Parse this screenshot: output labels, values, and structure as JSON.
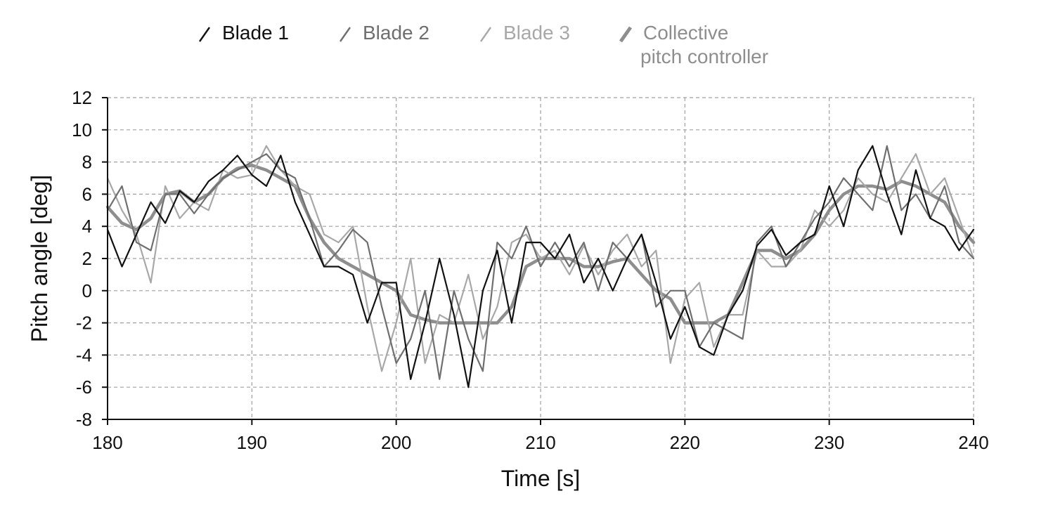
{
  "chart_data": {
    "type": "line",
    "xlabel": "Time [s]",
    "ylabel": "Pitch angle [deg]",
    "xlim": [
      180,
      240
    ],
    "ylim": [
      -8,
      12
    ],
    "x_ticks": [
      180,
      190,
      200,
      210,
      220,
      230,
      240
    ],
    "y_ticks": [
      -8,
      -6,
      -4,
      -2,
      0,
      2,
      4,
      6,
      8,
      10,
      12
    ],
    "x_tick_labels": [
      "180",
      "190",
      "200",
      "210",
      "220",
      "230",
      "240"
    ],
    "y_tick_labels": [
      "-8",
      "-6",
      "-4",
      "-2",
      "0",
      "2",
      "4",
      "6",
      "8",
      "10",
      "12"
    ],
    "grid": true,
    "legend_position": "top",
    "x": [
      180,
      181,
      182,
      183,
      184,
      185,
      186,
      187,
      188,
      189,
      190,
      191,
      192,
      193,
      194,
      195,
      196,
      197,
      198,
      199,
      200,
      201,
      202,
      203,
      204,
      205,
      206,
      207,
      208,
      209,
      210,
      211,
      212,
      213,
      214,
      215,
      216,
      217,
      218,
      219,
      220,
      221,
      222,
      223,
      224,
      225,
      226,
      227,
      228,
      229,
      230,
      231,
      232,
      233,
      234,
      235,
      236,
      237,
      238,
      239,
      240
    ],
    "series": [
      {
        "name": "Blade 1",
        "color": "#111111",
        "width": 2.2,
        "values": [
          3.8,
          1.5,
          3.5,
          5.5,
          4.2,
          6.2,
          5.5,
          6.8,
          7.5,
          8.4,
          7.2,
          6.5,
          8.4,
          5.5,
          3.5,
          1.5,
          1.5,
          1.0,
          -2.0,
          0.5,
          0.5,
          -5.5,
          -2.0,
          2.0,
          -1.5,
          -6.0,
          0.0,
          2.5,
          -2.0,
          3.0,
          3.0,
          2.0,
          3.5,
          0.5,
          2.0,
          0.0,
          2.0,
          3.5,
          0.5,
          -3.0,
          -1.0,
          -3.5,
          -4.0,
          -1.5,
          0.0,
          2.8,
          3.8,
          2.2,
          3.0,
          3.5,
          6.5,
          4.0,
          7.5,
          9.0,
          6.0,
          3.5,
          7.5,
          4.5,
          4.0,
          2.5,
          3.8
        ]
      },
      {
        "name": "Blade 2",
        "color": "#6f6f6f",
        "width": 2.2,
        "values": [
          5.0,
          6.5,
          3.0,
          2.5,
          6.0,
          6.0,
          4.8,
          6.0,
          7.0,
          7.5,
          8.0,
          8.5,
          7.5,
          7.0,
          4.5,
          1.5,
          2.5,
          3.8,
          3.0,
          -1.0,
          -4.5,
          -3.0,
          0.0,
          -5.5,
          0.0,
          -3.0,
          -5.0,
          3.0,
          2.0,
          4.0,
          1.5,
          3.0,
          1.5,
          3.0,
          0.0,
          3.0,
          2.0,
          3.5,
          -1.0,
          0.0,
          0.0,
          -3.5,
          -2.0,
          -2.5,
          -3.0,
          3.0,
          4.0,
          1.5,
          3.0,
          4.5,
          5.5,
          7.0,
          6.0,
          5.0,
          9.0,
          5.0,
          6.0,
          4.5,
          6.5,
          3.0,
          2.0
        ]
      },
      {
        "name": "Blade 3",
        "color": "#a8a8a8",
        "width": 2.2,
        "values": [
          7.0,
          5.0,
          3.5,
          0.5,
          6.5,
          4.5,
          5.5,
          5.0,
          7.5,
          7.0,
          7.2,
          9.0,
          7.5,
          6.5,
          6.0,
          3.5,
          3.0,
          4.0,
          -1.0,
          -5.0,
          -2.0,
          2.0,
          -4.5,
          -1.5,
          -2.0,
          1.0,
          -3.0,
          -1.0,
          3.0,
          3.5,
          2.0,
          2.5,
          1.0,
          2.8,
          1.0,
          2.5,
          3.5,
          1.5,
          2.5,
          -4.5,
          -0.5,
          0.5,
          -3.5,
          -1.5,
          -1.5,
          2.5,
          1.5,
          1.5,
          2.5,
          5.0,
          4.0,
          5.0,
          7.0,
          6.0,
          5.5,
          7.0,
          8.5,
          6.0,
          7.0,
          4.5,
          2.0
        ]
      },
      {
        "name": "Collective pitch controller",
        "color": "#8e8e8e",
        "width": 4.5,
        "values": [
          5.2,
          4.2,
          3.8,
          4.5,
          6.0,
          6.2,
          5.5,
          6.0,
          7.0,
          7.6,
          7.8,
          7.5,
          7.0,
          6.5,
          4.5,
          3.0,
          2.0,
          1.5,
          1.0,
          0.5,
          0.0,
          -1.5,
          -1.8,
          -2.0,
          -2.0,
          -2.0,
          -2.0,
          -2.0,
          -1.0,
          1.5,
          2.0,
          2.0,
          2.0,
          1.5,
          1.5,
          1.8,
          2.0,
          1.0,
          0.0,
          -0.5,
          -2.0,
          -2.0,
          -2.0,
          -1.5,
          0.5,
          2.5,
          2.5,
          2.0,
          2.5,
          3.5,
          5.0,
          6.0,
          6.5,
          6.5,
          6.3,
          6.8,
          6.5,
          6.0,
          5.5,
          4.0,
          3.0
        ]
      }
    ]
  },
  "legend": {
    "blade1": "Blade 1",
    "blade2": "Blade 2",
    "blade3": "Blade 3",
    "collective_line1": "Collective",
    "collective_line2": "pitch controller"
  },
  "colors": {
    "axis": "#111111",
    "grid": "#a0a0a0",
    "blade1": "#111111",
    "blade2": "#6f6f6f",
    "blade3": "#a8a8a8",
    "collective": "#8e8e8e"
  }
}
